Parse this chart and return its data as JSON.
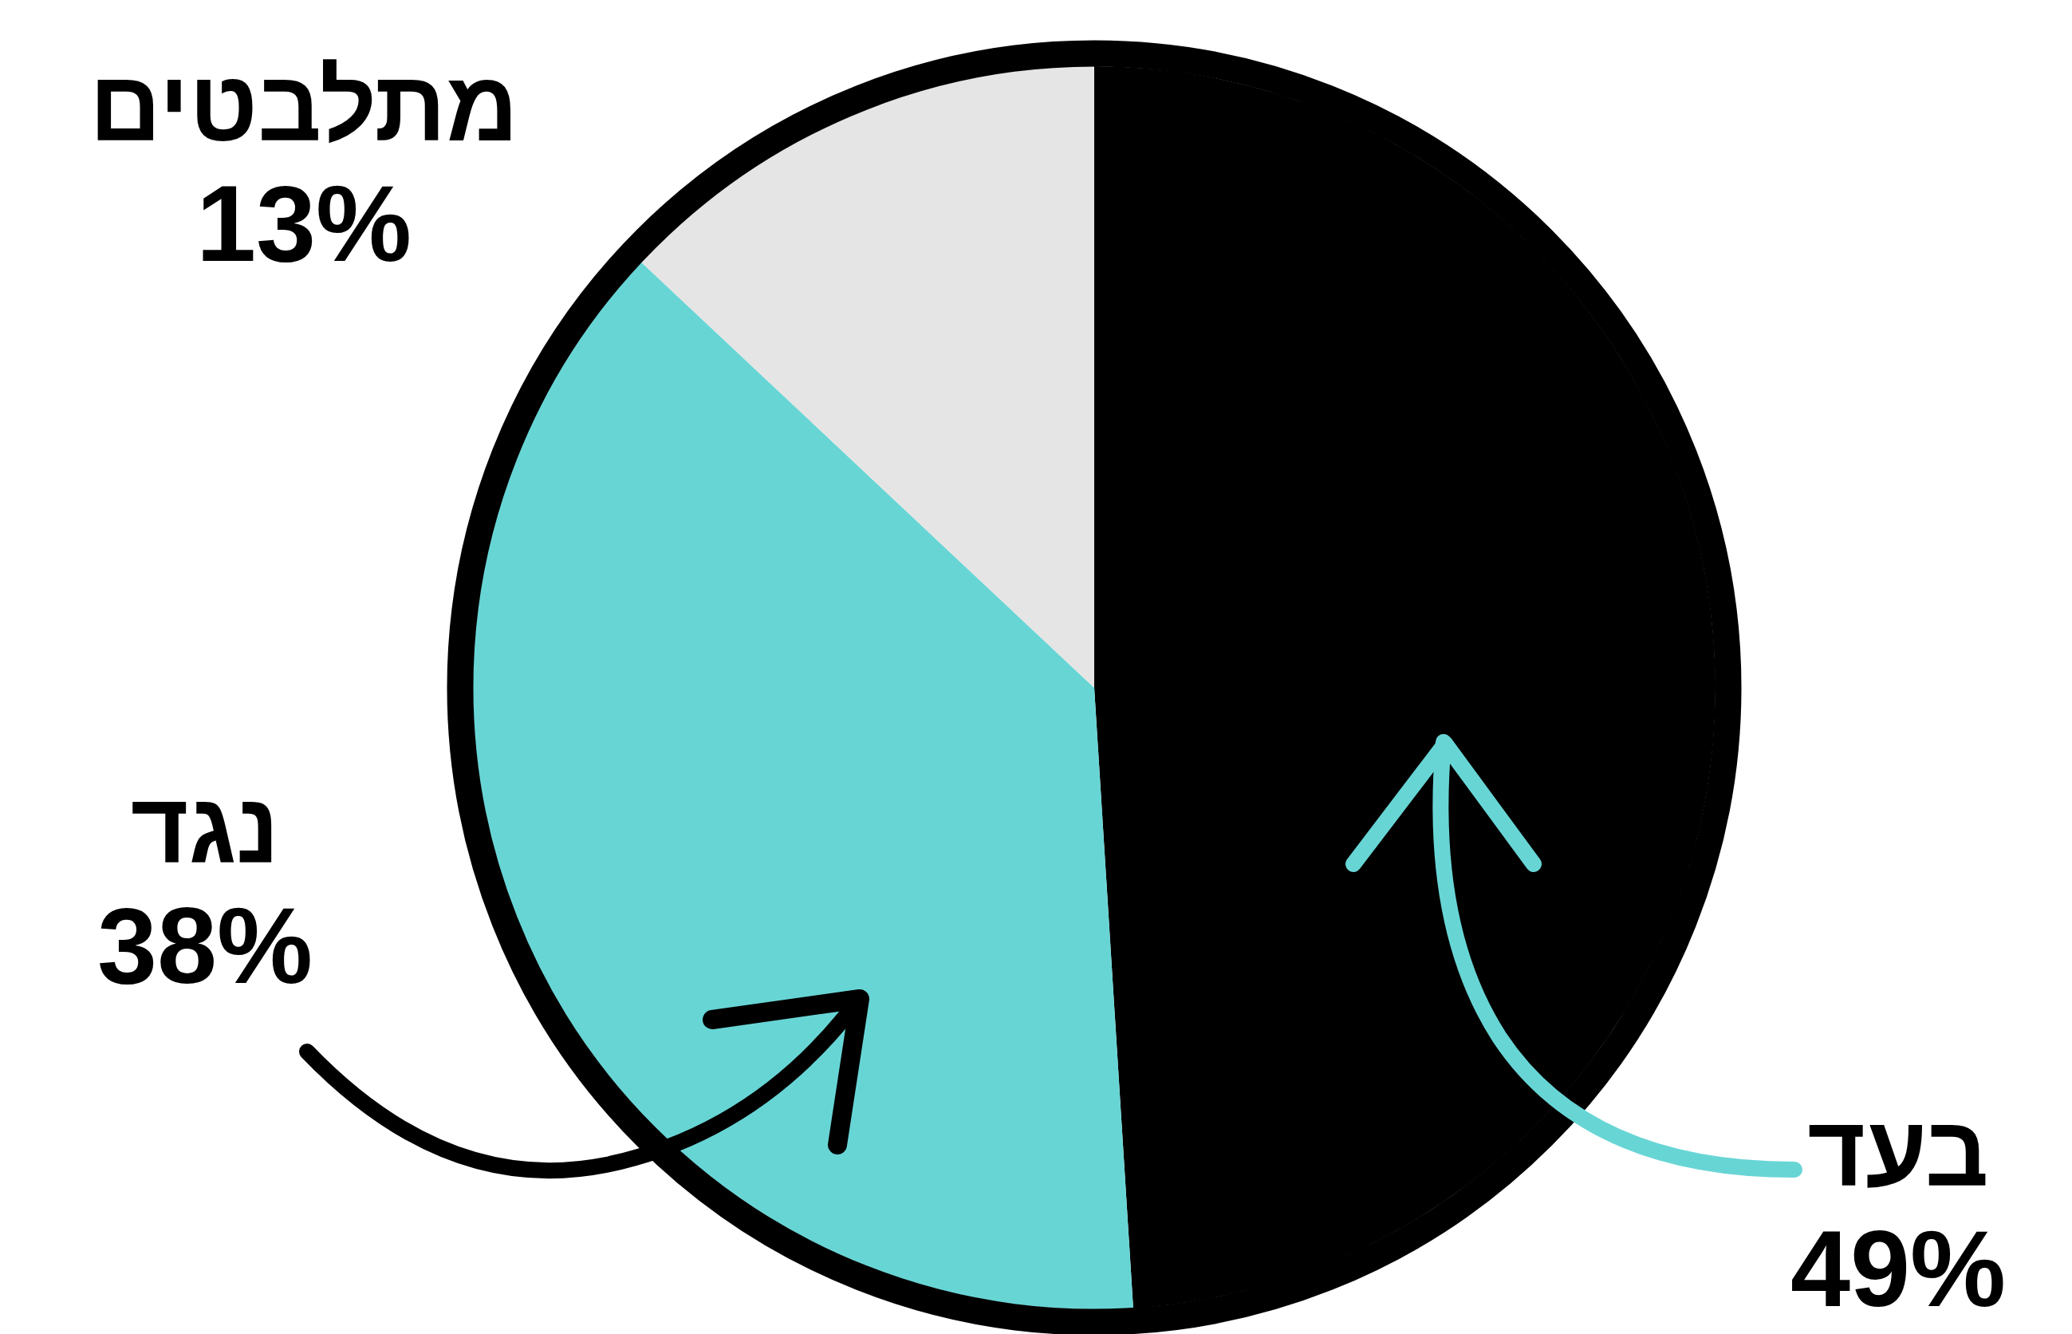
{
  "chart_data": {
    "type": "pie",
    "categories": [
      "בעד",
      "נגד",
      "מתלבטים"
    ],
    "values": [
      49,
      38,
      13
    ],
    "colors": [
      "#000000",
      "#68d5d5",
      "#e5e5e5"
    ],
    "value_labels": [
      "49%",
      "38%",
      "13%"
    ]
  }
}
